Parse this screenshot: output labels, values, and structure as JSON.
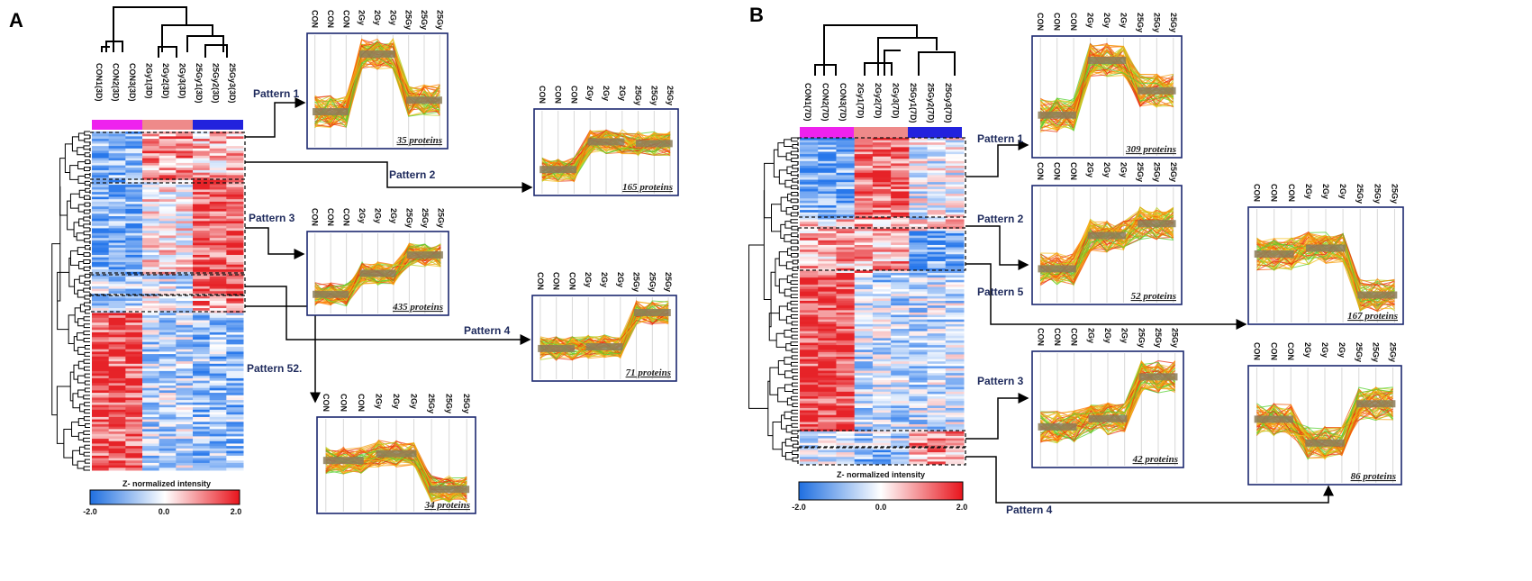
{
  "panels": [
    {
      "letter": "A",
      "columns": [
        "CON1(3D)",
        "CON2(3D)",
        "CON3(3D)",
        "2Gy1(3D)",
        "2Gy2(3D)",
        "2Gy3(3D)",
        "25Gy1(3D)",
        "25Gy2(3D)",
        "25Gy3(3D)"
      ],
      "colorbar_label": "Z- normalized intensity",
      "scale": {
        "min": "-2.0",
        "mid": "0.0",
        "max": "2.0"
      },
      "patterns": [
        {
          "name": "Pattern 1",
          "proteins": "35 proteins",
          "levels": [
            0.32,
            0.82,
            0.42
          ]
        },
        {
          "name": "Pattern 2",
          "proteins": "165 proteins",
          "levels": [
            0.3,
            0.62,
            0.6
          ]
        },
        {
          "name": "Pattern 3",
          "proteins": "435 proteins",
          "levels": [
            0.25,
            0.5,
            0.72
          ]
        },
        {
          "name": "Pattern 4",
          "proteins": "71 proteins",
          "levels": [
            0.38,
            0.4,
            0.8
          ]
        },
        {
          "name": "Pattern 52.",
          "proteins": "34 proteins",
          "levels": [
            0.55,
            0.62,
            0.25
          ]
        }
      ]
    },
    {
      "letter": "B",
      "columns": [
        "CON1(7D)",
        "CON2(7D)",
        "CON3(7D)",
        "2Gy1(7D)",
        "2Gy2(7D)",
        "2Gy3(7D)",
        "25Gy1(7D)",
        "25Gy2(7D)",
        "25Gy3(7D)"
      ],
      "colorbar_label": "Z- normalized intensity",
      "scale": {
        "min": "-2.0",
        "mid": "0.0",
        "max": "2.0"
      },
      "patterns": [
        {
          "name": "Pattern 1",
          "proteins": "309 proteins",
          "levels": [
            0.35,
            0.8,
            0.55
          ]
        },
        {
          "name": "Pattern 2",
          "proteins": "52 proteins",
          "levels": [
            0.3,
            0.58,
            0.68
          ]
        },
        {
          "name": "Pattern 5",
          "proteins": "167 proteins",
          "levels": [
            0.6,
            0.65,
            0.25
          ]
        },
        {
          "name": "Pattern 3",
          "proteins": "42 proteins",
          "levels": [
            0.35,
            0.42,
            0.78
          ]
        },
        {
          "name": "Pattern 4",
          "proteins": "86 proteins",
          "levels": [
            0.55,
            0.35,
            0.68
          ]
        }
      ]
    }
  ],
  "small_plot_labels": [
    "CON",
    "CON",
    "CON",
    "2Gy",
    "2Gy",
    "2Gy",
    "25Gy",
    "25Gy",
    "25Gy"
  ]
}
